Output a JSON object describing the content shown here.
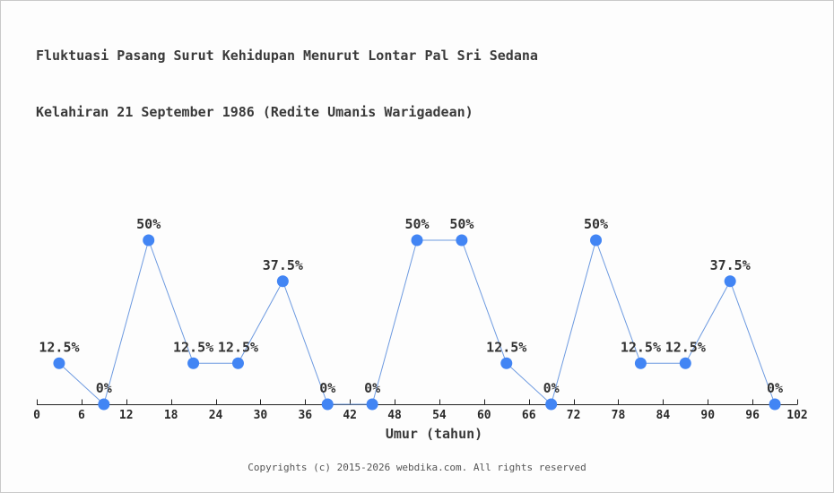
{
  "title": {
    "line1": "Fluktuasi Pasang Surut Kehidupan Menurut Lontar Pal Sri Sedana",
    "line2": "Kelahiran 21 September 1986 (Redite Umanis Warigadean)"
  },
  "footer": "Copyrights (c) 2015-2026 webdika.com. All rights reserved",
  "colors": {
    "marker": "#4285f4",
    "line": "#6d9ae0",
    "axis": "#222222",
    "tick_label": "#2a2a2a",
    "point_label": "#333333",
    "title_text": "#3a3a3a",
    "footer_text": "#555555",
    "background": "#fdfdfd",
    "border": "#c9c9c9"
  },
  "chart_data": {
    "type": "line",
    "x": [
      3,
      9,
      15,
      21,
      27,
      33,
      39,
      45,
      51,
      57,
      63,
      69,
      75,
      81,
      87,
      93,
      99
    ],
    "values": [
      12.5,
      0,
      50,
      12.5,
      12.5,
      37.5,
      0,
      0,
      50,
      50,
      12.5,
      0,
      50,
      12.5,
      12.5,
      37.5,
      0
    ],
    "point_labels": [
      "12.5%",
      "0%",
      "50%",
      "12.5%",
      "12.5%",
      "37.5%",
      "0%",
      "0%",
      "50%",
      "50%",
      "12.5%",
      "0%",
      "50%",
      "12.5%",
      "12.5%",
      "37.5%",
      "0%"
    ],
    "x_ticks": [
      0,
      6,
      12,
      18,
      24,
      30,
      36,
      42,
      48,
      54,
      60,
      66,
      72,
      78,
      84,
      90,
      96,
      102
    ],
    "xlim": [
      0,
      102
    ],
    "ylim": [
      0,
      100
    ],
    "title": "Fluktuasi Pasang Surut Kehidupan Menurut Lontar Pal Sri Sedana Kelahiran 21 September 1986 (Redite Umanis Warigadean)",
    "xlabel": "Umur (tahun)",
    "ylabel": "",
    "grid": false,
    "legend": "none",
    "marker": "circle"
  }
}
